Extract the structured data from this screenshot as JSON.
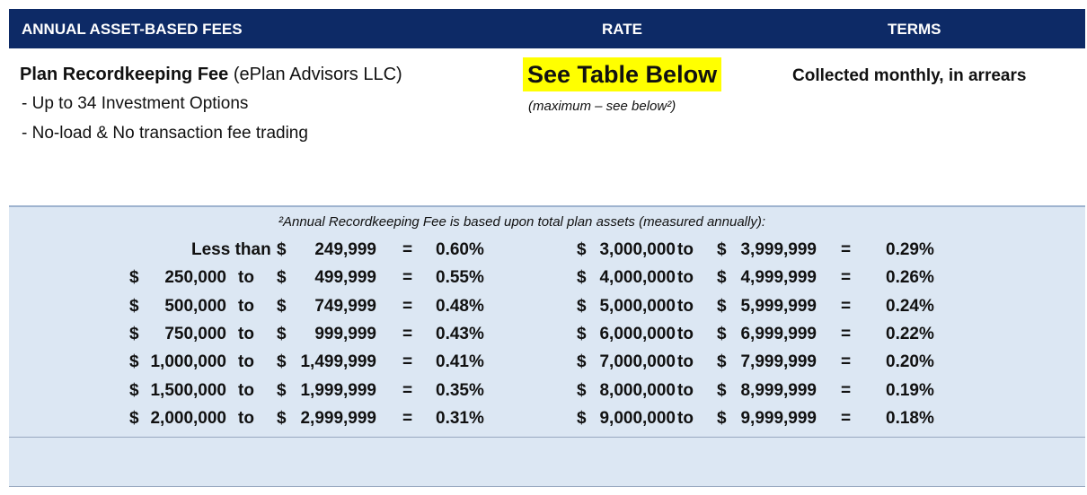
{
  "header": {
    "fees": "ANNUAL ASSET-BASED FEES",
    "rate": "RATE",
    "terms": "TERMS"
  },
  "fee": {
    "name": "Plan Recordkeeping Fee",
    "provider": " (ePlan Advisors LLC)",
    "bullets": [
      "-  Up to 34 Investment Options",
      "-  No-load & No transaction fee trading"
    ],
    "rate_label": "See Table Below",
    "rate_note": "(maximum – see below²)",
    "terms": "Collected monthly, in arrears",
    "highlight_color": "#ffff00"
  },
  "schedule": {
    "note": "²Annual Recordkeeping Fee is based upon total plan assets (measured annually):",
    "left": [
      {
        "prefix": "Less than",
        "from": "",
        "to": "249,999",
        "rate": "0.60%"
      },
      {
        "prefix": "",
        "from": "250,000",
        "to": "499,999",
        "rate": "0.55%"
      },
      {
        "prefix": "",
        "from": "500,000",
        "to": "749,999",
        "rate": "0.48%"
      },
      {
        "prefix": "",
        "from": "750,000",
        "to": "999,999",
        "rate": "0.43%"
      },
      {
        "prefix": "",
        "from": "1,000,000",
        "to": "1,499,999",
        "rate": "0.41%"
      },
      {
        "prefix": "",
        "from": "1,500,000",
        "to": "1,999,999",
        "rate": "0.35%"
      },
      {
        "prefix": "",
        "from": "2,000,000",
        "to": "2,999,999",
        "rate": "0.31%"
      }
    ],
    "right": [
      {
        "from": "3,000,000",
        "to": "3,999,999",
        "rate": "0.29%"
      },
      {
        "from": "4,000,000",
        "to": "4,999,999",
        "rate": "0.26%"
      },
      {
        "from": "5,000,000",
        "to": "5,999,999",
        "rate": "0.24%"
      },
      {
        "from": "6,000,000",
        "to": "6,999,999",
        "rate": "0.22%"
      },
      {
        "from": "7,000,000",
        "to": "7,999,999",
        "rate": "0.20%"
      },
      {
        "from": "8,000,000",
        "to": "8,999,999",
        "rate": "0.19%"
      },
      {
        "from": "9,000,000",
        "to": "9,999,999",
        "rate": "0.18%"
      }
    ],
    "currency": "$",
    "to_word": "to",
    "equals": "="
  },
  "colors": {
    "header_bg": "#0d2a66",
    "schedule_bg": "#dce7f3"
  }
}
